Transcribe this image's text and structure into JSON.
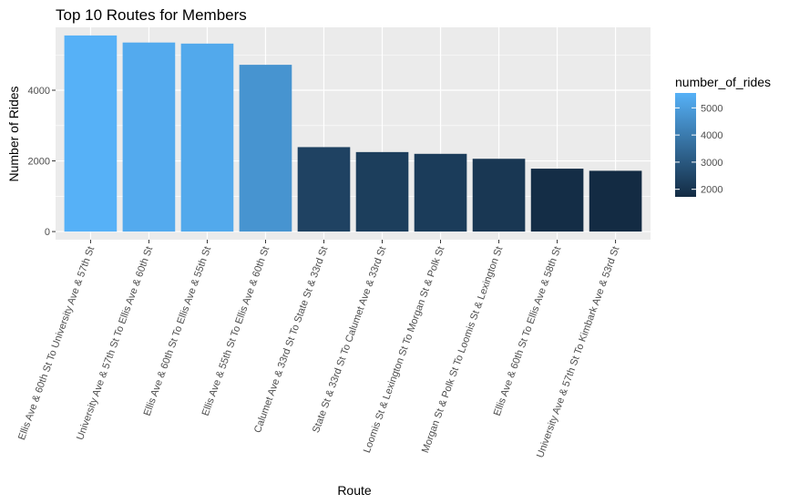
{
  "chart_data": {
    "type": "bar",
    "title": "Top 10 Routes for Members",
    "xlabel": "Route",
    "ylabel": "Number of Rides",
    "categories": [
      "Ellis Ave & 60th St To University Ave & 57th St",
      "University Ave & 57th St To Ellis Ave & 60th St",
      "Ellis Ave & 60th St To Ellis Ave & 55th St",
      "Ellis Ave & 55th St To Ellis Ave & 60th St",
      "Calumet Ave & 33rd St To State St & 33rd St",
      "State St & 33rd St To Calumet Ave & 33rd St",
      "Loomis St & Lexington St To Morgan St & Polk St",
      "Morgan St & Polk St To Loomis St & Lexington St",
      "Ellis Ave & 60th St To Ellis Ave & 58th St",
      "University Ave & 57th St To Kimbark Ave & 53rd St"
    ],
    "values": [
      5550,
      5350,
      5320,
      4720,
      2390,
      2250,
      2200,
      2060,
      1780,
      1720
    ],
    "ylim": [
      -230,
      5780
    ],
    "yticks": [
      0,
      2000,
      4000
    ],
    "grid": true,
    "legend": {
      "title": "number_of_rides",
      "position": "right",
      "ticks": [
        2000,
        3000,
        4000,
        5000
      ],
      "range": [
        1720,
        5550
      ],
      "color_low": "#132B43",
      "color_high": "#56B1F7"
    },
    "colors": {
      "panel": "#EBEBEB",
      "grid": "#ffffff"
    }
  }
}
